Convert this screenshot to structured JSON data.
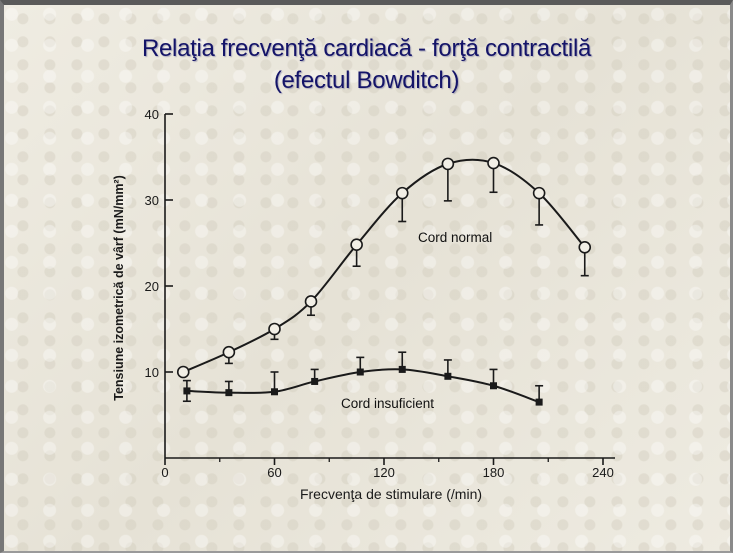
{
  "slide": {
    "title_line1": "Relaţia frecvenţă cardiacă - forţă contractilă",
    "title_line2": "(efectul Bowditch)",
    "title_color": "#141468"
  },
  "chart_data": {
    "type": "line",
    "xlabel": "Frecvenţa de stimulare (/min)",
    "ylabel": "Tensiune izometrică de vârf (mN/mm²)",
    "xlim": [
      0,
      240
    ],
    "ylim": [
      0,
      40
    ],
    "xticks": [
      0,
      60,
      120,
      180,
      240
    ],
    "yticks": [
      10,
      20,
      30,
      40
    ],
    "grid": false,
    "series": [
      {
        "name": "Cord normal",
        "marker": "open-circle",
        "x": [
          10,
          35,
          60,
          80,
          105,
          130,
          155,
          180,
          205,
          230
        ],
        "y": [
          10.0,
          12.3,
          15.0,
          18.2,
          24.8,
          30.8,
          34.2,
          34.3,
          30.8,
          24.5
        ],
        "err_low": [
          0,
          1.3,
          1.2,
          1.6,
          2.5,
          3.3,
          4.3,
          3.4,
          3.7,
          3.3
        ]
      },
      {
        "name": "Cord insuficient",
        "marker": "filled-square",
        "x": [
          12,
          35,
          60,
          82,
          107,
          130,
          155,
          180,
          205
        ],
        "y": [
          7.8,
          7.6,
          7.7,
          8.9,
          10.0,
          10.3,
          9.5,
          8.4,
          6.5
        ],
        "err_up": [
          1.2,
          1.3,
          2.3,
          1.4,
          1.7,
          2.0,
          1.9,
          1.9,
          1.9
        ],
        "err_low": [
          1.2,
          0,
          0,
          0,
          0,
          0,
          0,
          0,
          0
        ]
      }
    ]
  }
}
